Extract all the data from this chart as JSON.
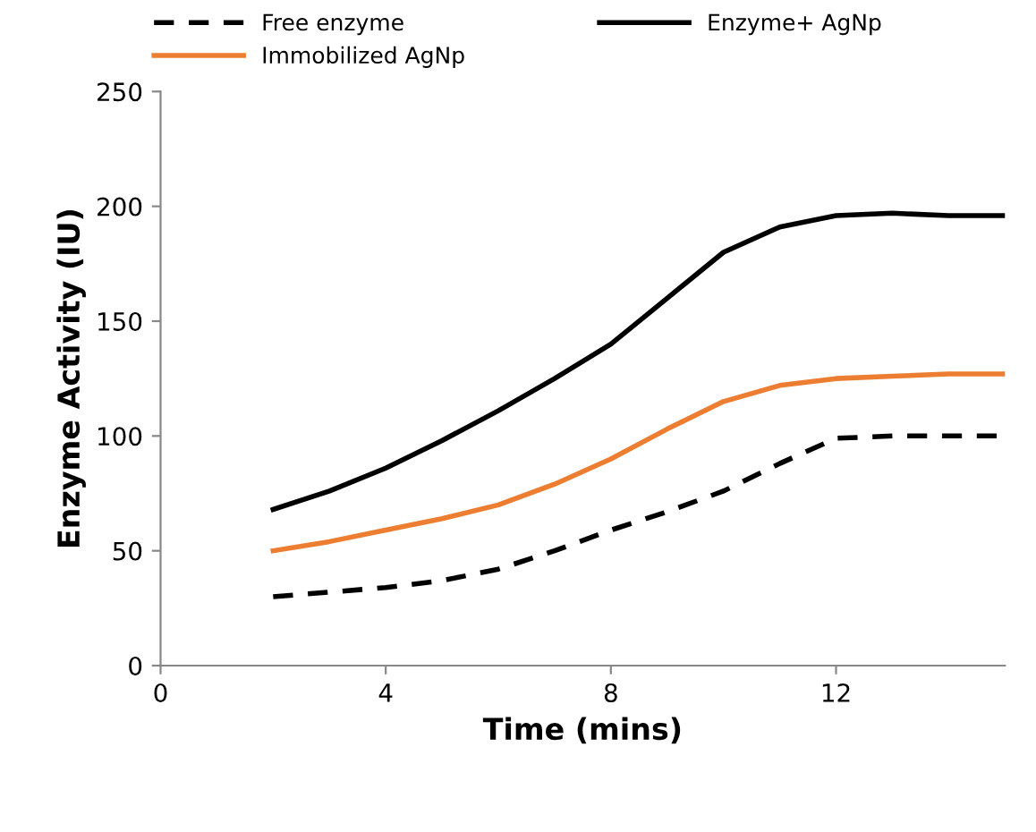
{
  "chart_data": {
    "type": "line",
    "xlabel": "Time (mins)",
    "ylabel": "Enzyme Activity (IU)",
    "x": [
      2,
      3,
      4,
      5,
      6,
      7,
      8,
      9,
      10,
      11,
      12,
      13,
      14,
      15
    ],
    "series": [
      {
        "name": "Free enzyme",
        "color": "#000000",
        "line_style": "dashed",
        "values": [
          30,
          32,
          34,
          37,
          42,
          50,
          59,
          67,
          76,
          88,
          99,
          100,
          100,
          100
        ]
      },
      {
        "name": "Enzyme+ AgNp",
        "color": "#000000",
        "line_style": "solid",
        "values": [
          68,
          76,
          86,
          98,
          111,
          125,
          140,
          160,
          180,
          191,
          196,
          197,
          196,
          196
        ]
      },
      {
        "name": "Immobilized AgNp",
        "color": "#ed7d31",
        "line_style": "solid",
        "values": [
          50,
          54,
          59,
          64,
          70,
          79,
          90,
          103,
          115,
          122,
          125,
          126,
          127,
          127
        ]
      }
    ],
    "xlim": [
      0,
      15
    ],
    "xticks": [
      0,
      4,
      8,
      12
    ],
    "ylim": [
      0,
      250
    ],
    "yticks": [
      0,
      50,
      100,
      150,
      200,
      250
    ],
    "grid": false,
    "legend": "top",
    "marker": "none"
  }
}
